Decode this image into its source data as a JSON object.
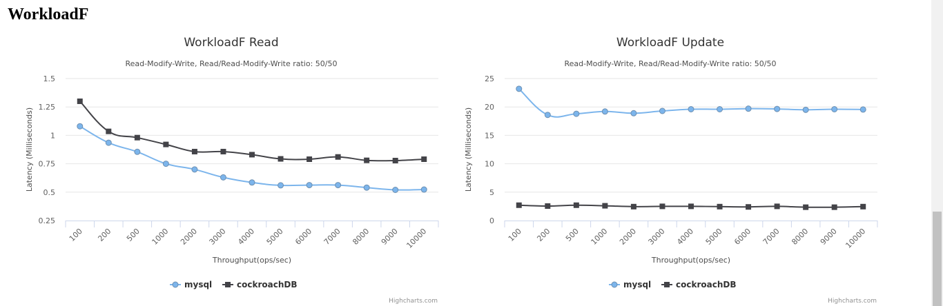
{
  "page": {
    "heading": "WorkloadF"
  },
  "colors": {
    "mysql": "#7cb5ec",
    "cockroachDB": "#434348",
    "grid": "#e6e6e6",
    "axis": "#ccd6eb"
  },
  "chart_data": [
    {
      "type": "line",
      "title": "WorkloadF Read",
      "subtitle": "Read-Modify-Write, Read/Read-Modify-Write ratio: 50/50",
      "xlabel": "Throughput(ops/sec)",
      "ylabel": "Latency (Milliseconds)",
      "categories": [
        "100",
        "200",
        "500",
        "1000",
        "2000",
        "3000",
        "4000",
        "5000",
        "6000",
        "7000",
        "8000",
        "9000",
        "10000"
      ],
      "yticks": [
        "0.25",
        "0.5",
        "0.75",
        "1",
        "1.25",
        "1.5"
      ],
      "ylim": [
        0.25,
        1.5
      ],
      "grid": true,
      "legend_position": "bottom-center",
      "series": [
        {
          "name": "mysql",
          "marker": "circle",
          "values": [
            1.08,
            0.935,
            0.855,
            0.75,
            0.7,
            0.63,
            0.585,
            0.56,
            0.562,
            0.562,
            0.54,
            0.52,
            0.523
          ]
        },
        {
          "name": "cockroachDB",
          "marker": "square",
          "values": [
            1.3,
            1.035,
            0.98,
            0.92,
            0.857,
            0.857,
            0.83,
            0.793,
            0.79,
            0.81,
            0.78,
            0.778,
            0.79
          ]
        }
      ],
      "credits": "Highcharts.com"
    },
    {
      "type": "line",
      "title": "WorkloadF Update",
      "subtitle": "Read-Modify-Write, Read/Read-Modify-Write ratio: 50/50",
      "xlabel": "Throughput(ops/sec)",
      "ylabel": "Latency (Milliseconds)",
      "categories": [
        "100",
        "200",
        "500",
        "1000",
        "2000",
        "3000",
        "4000",
        "5000",
        "6000",
        "7000",
        "8000",
        "9000",
        "10000"
      ],
      "yticks": [
        "0",
        "5",
        "10",
        "15",
        "20",
        "25"
      ],
      "ylim": [
        0,
        25
      ],
      "grid": true,
      "legend_position": "bottom-center",
      "series": [
        {
          "name": "mysql",
          "marker": "circle",
          "values": [
            23.2,
            18.6,
            18.8,
            19.2,
            18.9,
            19.3,
            19.6,
            19.6,
            19.7,
            19.65,
            19.5,
            19.6,
            19.55
          ]
        },
        {
          "name": "cockroachDB",
          "marker": "square",
          "values": [
            2.7,
            2.55,
            2.7,
            2.6,
            2.45,
            2.5,
            2.5,
            2.45,
            2.4,
            2.5,
            2.35,
            2.35,
            2.45
          ]
        }
      ],
      "credits": "Highcharts.com"
    }
  ]
}
